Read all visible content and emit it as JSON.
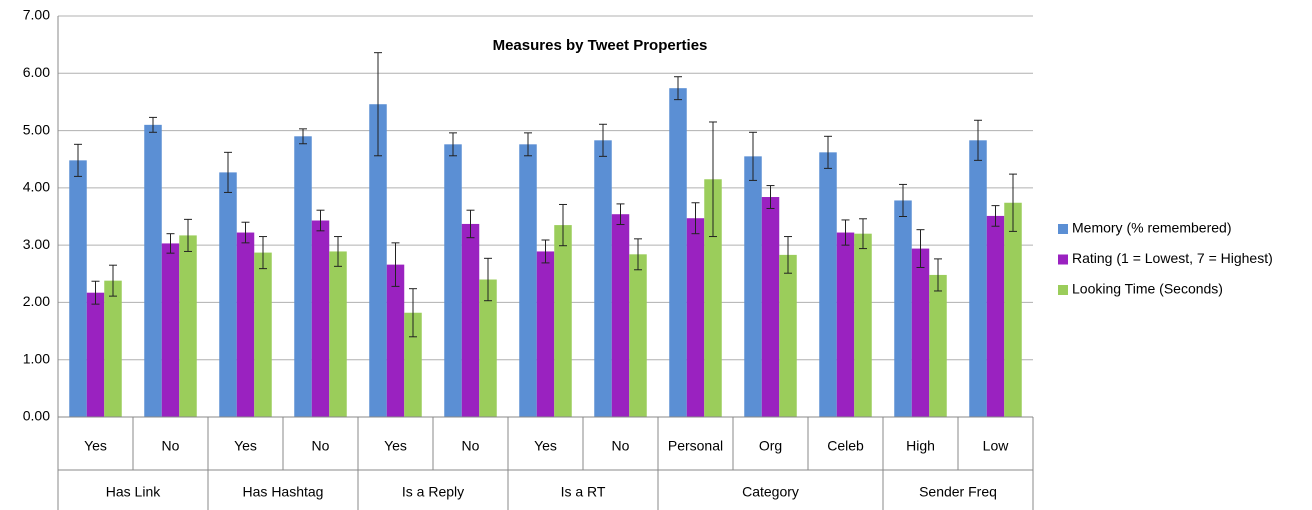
{
  "chart_data": {
    "type": "bar",
    "title": "Measures by Tweet Properties",
    "category_groups": [
      {
        "name": "Has Link",
        "categories": [
          "Yes",
          "No"
        ]
      },
      {
        "name": "Has Hashtag",
        "categories": [
          "Yes",
          "No"
        ]
      },
      {
        "name": "Is a Reply",
        "categories": [
          "Yes",
          "No"
        ]
      },
      {
        "name": "Is a RT",
        "categories": [
          "Yes",
          "No"
        ]
      },
      {
        "name": "Category",
        "categories": [
          "Personal",
          "Org",
          "Celeb"
        ]
      },
      {
        "name": "Sender Freq",
        "categories": [
          "High",
          "Low"
        ]
      }
    ],
    "series": [
      {
        "name": "Memory (% remembered)",
        "color": "#5b8fd4",
        "values": [
          4.48,
          5.1,
          4.27,
          4.9,
          5.46,
          4.76,
          4.76,
          4.83,
          5.74,
          4.55,
          4.62,
          3.78,
          4.83
        ],
        "errors": [
          0.28,
          0.13,
          0.35,
          0.13,
          0.9,
          0.2,
          0.2,
          0.28,
          0.2,
          0.42,
          0.28,
          0.28,
          0.35
        ]
      },
      {
        "name": "Rating (1 = Lowest, 7 = Highest)",
        "color": "#9a22c0",
        "values": [
          2.17,
          3.03,
          3.22,
          3.43,
          2.66,
          3.37,
          2.89,
          3.54,
          3.47,
          3.84,
          3.22,
          2.94,
          3.51
        ],
        "errors": [
          0.2,
          0.17,
          0.18,
          0.18,
          0.38,
          0.24,
          0.2,
          0.18,
          0.27,
          0.2,
          0.22,
          0.33,
          0.18
        ]
      },
      {
        "name": "Looking Time (Seconds)",
        "color": "#9bcd5b",
        "values": [
          2.38,
          3.17,
          2.87,
          2.89,
          1.82,
          2.4,
          3.35,
          2.84,
          4.15,
          2.83,
          3.2,
          2.48,
          3.74
        ],
        "errors": [
          0.27,
          0.28,
          0.28,
          0.26,
          0.42,
          0.37,
          0.36,
          0.27,
          1.0,
          0.32,
          0.26,
          0.28,
          0.5
        ]
      }
    ],
    "ylim": [
      0,
      7
    ],
    "yticks": [
      {
        "value": 0,
        "label": "0.00"
      },
      {
        "value": 1,
        "label": "1.00"
      },
      {
        "value": 2,
        "label": "2.00"
      },
      {
        "value": 3,
        "label": "3.00"
      },
      {
        "value": 4,
        "label": "4.00"
      },
      {
        "value": 5,
        "label": "5.00"
      },
      {
        "value": 6,
        "label": "6.00"
      },
      {
        "value": 7,
        "label": "7.00"
      }
    ],
    "grid": true,
    "legend": "right"
  }
}
